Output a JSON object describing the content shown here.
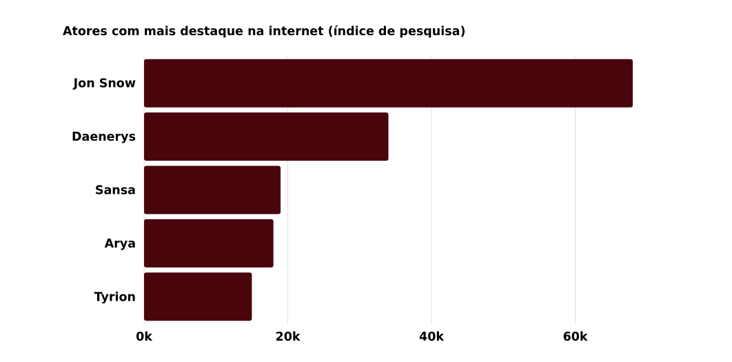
{
  "chart_data": {
    "type": "bar",
    "orientation": "horizontal",
    "title": "Atores com mais destaque na internet (índice de pesquisa)",
    "xlabel": "",
    "ylabel": "",
    "categories": [
      "Jon Snow",
      "Daenerys",
      "Sansa",
      "Arya",
      "Tyrion"
    ],
    "values": [
      68000,
      34000,
      19000,
      18000,
      15000
    ],
    "xlim": [
      0,
      68000
    ],
    "x_ticks": [
      0,
      20000,
      40000,
      60000
    ],
    "x_tick_labels": [
      "0k",
      "20k",
      "40k",
      "60k"
    ],
    "grid": "vertical",
    "legend": "none",
    "bar_color": "#4a050c",
    "grid_color": "#dddddd"
  }
}
